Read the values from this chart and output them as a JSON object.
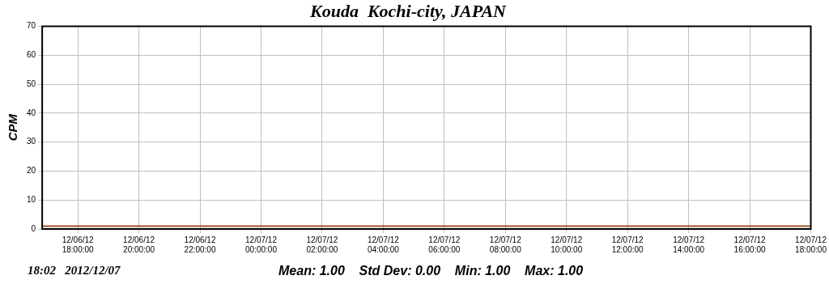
{
  "chart_data": {
    "type": "line",
    "title": "Kouda  Kochi-city, JAPAN",
    "ylabel": "CPM",
    "series": [
      {
        "color": "#a0522d",
        "x": [
          "2012-12-06T16:50",
          "2012-12-07T18:00"
        ],
        "values": [
          1,
          1
        ]
      }
    ],
    "xlim": [
      "2012-12-06T16:50",
      "2012-12-07T18:00"
    ],
    "xticks": [
      {
        "value": "2012-12-06T18:00",
        "label": "12/06/12 18:00:00"
      },
      {
        "value": "2012-12-06T20:00",
        "label": "12/06/12 20:00:00"
      },
      {
        "value": "2012-12-06T22:00",
        "label": "12/06/12 22:00:00"
      },
      {
        "value": "2012-12-07T00:00",
        "label": "12/07/12 00:00:00"
      },
      {
        "value": "2012-12-07T02:00",
        "label": "12/07/12 02:00:00"
      },
      {
        "value": "2012-12-07T04:00",
        "label": "12/07/12 04:00:00"
      },
      {
        "value": "2012-12-07T06:00",
        "label": "12/07/12 06:00:00"
      },
      {
        "value": "2012-12-07T08:00",
        "label": "12/07/12 08:00:00"
      },
      {
        "value": "2012-12-07T10:00",
        "label": "12/07/12 10:00:00"
      },
      {
        "value": "2012-12-07T12:00",
        "label": "12/07/12 12:00:00"
      },
      {
        "value": "2012-12-07T14:00",
        "label": "12/07/12 14:00:00"
      },
      {
        "value": "2012-12-07T16:00",
        "label": "12/07/12 16:00:00"
      },
      {
        "value": "2012-12-07T18:00",
        "label": "12/07/12 18:00:00"
      }
    ],
    "ylim": [
      0,
      70
    ],
    "yticks": [
      0,
      10,
      20,
      30,
      40,
      50,
      60,
      70
    ],
    "grid": true,
    "legend": false,
    "marker": "none",
    "line_style": "solid",
    "annotations": [
      "18:02   2012/12/07",
      "Mean: 1.00    Std Dev: 0.00    Min: 1.00    Max: 1.00"
    ]
  }
}
